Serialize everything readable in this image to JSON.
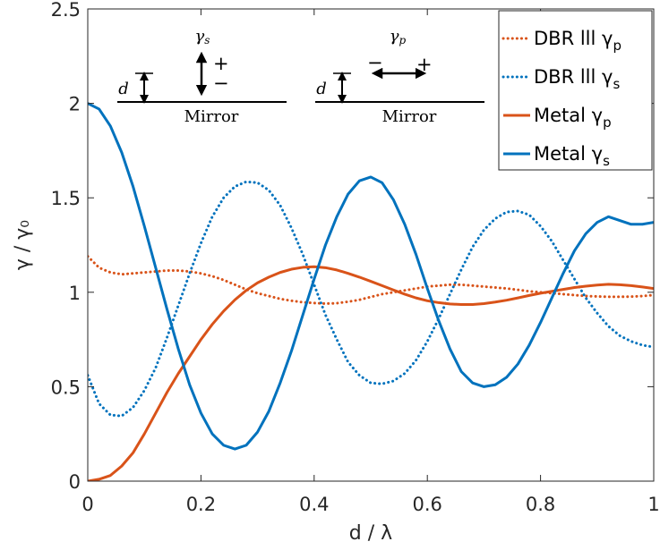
{
  "chart_data": {
    "type": "line",
    "xlabel": "d / λ",
    "ylabel": "γ / γ₀",
    "xlim": [
      0,
      1
    ],
    "ylim": [
      0,
      2.5
    ],
    "xticks": [
      0,
      0.2,
      0.4,
      0.6,
      0.8,
      1
    ],
    "yticks": [
      0,
      0.5,
      1,
      1.5,
      2,
      2.5
    ],
    "xtick_labels": [
      "0",
      "0.2",
      "0.4",
      "0.6",
      "0.8",
      "1"
    ],
    "ytick_labels": [
      "0",
      "0.5",
      "1",
      "1.5",
      "2",
      "2.5"
    ],
    "grid": false,
    "legend_position": "top-right",
    "series": [
      {
        "name": "DBR lll γp",
        "color": "#D95319",
        "style": "dotted",
        "x": [
          0,
          0.02,
          0.04,
          0.06,
          0.08,
          0.1,
          0.12,
          0.14,
          0.16,
          0.18,
          0.2,
          0.22,
          0.24,
          0.26,
          0.28,
          0.3,
          0.32,
          0.34,
          0.36,
          0.38,
          0.4,
          0.42,
          0.44,
          0.46,
          0.48,
          0.5,
          0.52,
          0.54,
          0.56,
          0.58,
          0.6,
          0.62,
          0.64,
          0.66,
          0.68,
          0.7,
          0.72,
          0.74,
          0.76,
          0.78,
          0.8,
          0.82,
          0.84,
          0.86,
          0.88,
          0.9,
          0.92,
          0.94,
          0.96,
          0.98,
          1
        ],
        "values": [
          1.19,
          1.13,
          1.105,
          1.095,
          1.1,
          1.105,
          1.11,
          1.115,
          1.115,
          1.11,
          1.1,
          1.085,
          1.065,
          1.04,
          1.015,
          0.995,
          0.98,
          0.965,
          0.955,
          0.947,
          0.943,
          0.94,
          0.942,
          0.95,
          0.96,
          0.975,
          0.99,
          1.0,
          1.01,
          1.02,
          1.03,
          1.035,
          1.04,
          1.04,
          1.035,
          1.03,
          1.025,
          1.02,
          1.013,
          1.005,
          1.0,
          0.995,
          0.99,
          0.985,
          0.98,
          0.978,
          0.976,
          0.976,
          0.977,
          0.98,
          0.985
        ]
      },
      {
        "name": "DBR lll γs",
        "color": "#0072BD",
        "style": "dotted",
        "x": [
          0,
          0.02,
          0.04,
          0.06,
          0.08,
          0.1,
          0.12,
          0.14,
          0.16,
          0.18,
          0.2,
          0.22,
          0.24,
          0.26,
          0.28,
          0.3,
          0.32,
          0.34,
          0.36,
          0.38,
          0.4,
          0.42,
          0.44,
          0.46,
          0.48,
          0.5,
          0.52,
          0.54,
          0.56,
          0.58,
          0.6,
          0.62,
          0.64,
          0.66,
          0.68,
          0.7,
          0.72,
          0.74,
          0.76,
          0.78,
          0.8,
          0.82,
          0.84,
          0.86,
          0.88,
          0.9,
          0.92,
          0.94,
          0.96,
          0.98,
          1
        ],
        "values": [
          0.56,
          0.41,
          0.35,
          0.345,
          0.39,
          0.48,
          0.6,
          0.76,
          0.93,
          1.1,
          1.26,
          1.4,
          1.5,
          1.56,
          1.585,
          1.58,
          1.54,
          1.46,
          1.34,
          1.2,
          1.04,
          0.88,
          0.75,
          0.63,
          0.56,
          0.52,
          0.515,
          0.53,
          0.57,
          0.64,
          0.74,
          0.86,
          0.99,
          1.12,
          1.24,
          1.33,
          1.39,
          1.425,
          1.43,
          1.41,
          1.35,
          1.27,
          1.17,
          1.07,
          0.97,
          0.89,
          0.82,
          0.77,
          0.74,
          0.72,
          0.71
        ]
      },
      {
        "name": "Metal γp",
        "color": "#D95319",
        "style": "solid",
        "x": [
          0,
          0.02,
          0.04,
          0.06,
          0.08,
          0.1,
          0.12,
          0.14,
          0.16,
          0.18,
          0.2,
          0.22,
          0.24,
          0.26,
          0.28,
          0.3,
          0.32,
          0.34,
          0.36,
          0.38,
          0.4,
          0.42,
          0.44,
          0.46,
          0.48,
          0.5,
          0.52,
          0.54,
          0.56,
          0.58,
          0.6,
          0.62,
          0.64,
          0.66,
          0.68,
          0.7,
          0.72,
          0.74,
          0.76,
          0.78,
          0.8,
          0.82,
          0.84,
          0.86,
          0.88,
          0.9,
          0.92,
          0.94,
          0.96,
          0.98,
          1
        ],
        "values": [
          0.0,
          0.01,
          0.03,
          0.08,
          0.15,
          0.25,
          0.36,
          0.47,
          0.57,
          0.66,
          0.75,
          0.83,
          0.9,
          0.96,
          1.01,
          1.05,
          1.08,
          1.105,
          1.122,
          1.132,
          1.135,
          1.13,
          1.118,
          1.1,
          1.08,
          1.058,
          1.035,
          1.012,
          0.99,
          0.97,
          0.955,
          0.945,
          0.938,
          0.935,
          0.935,
          0.94,
          0.948,
          0.958,
          0.97,
          0.983,
          0.995,
          1.005,
          1.015,
          1.025,
          1.032,
          1.038,
          1.042,
          1.04,
          1.035,
          1.028,
          1.02
        ]
      },
      {
        "name": "Metal γs",
        "color": "#0072BD",
        "style": "solid",
        "x": [
          0,
          0.02,
          0.04,
          0.06,
          0.08,
          0.1,
          0.12,
          0.14,
          0.16,
          0.18,
          0.2,
          0.22,
          0.24,
          0.26,
          0.28,
          0.3,
          0.32,
          0.34,
          0.36,
          0.38,
          0.4,
          0.42,
          0.44,
          0.46,
          0.48,
          0.5,
          0.52,
          0.54,
          0.56,
          0.58,
          0.6,
          0.62,
          0.64,
          0.66,
          0.68,
          0.7,
          0.72,
          0.74,
          0.76,
          0.78,
          0.8,
          0.82,
          0.84,
          0.86,
          0.88,
          0.9,
          0.92,
          0.94,
          0.96,
          0.98,
          1
        ],
        "values": [
          2.0,
          1.97,
          1.88,
          1.74,
          1.56,
          1.35,
          1.13,
          0.91,
          0.7,
          0.51,
          0.36,
          0.25,
          0.19,
          0.17,
          0.19,
          0.26,
          0.37,
          0.52,
          0.69,
          0.88,
          1.07,
          1.25,
          1.4,
          1.52,
          1.59,
          1.61,
          1.58,
          1.49,
          1.36,
          1.2,
          1.02,
          0.85,
          0.7,
          0.58,
          0.52,
          0.5,
          0.51,
          0.55,
          0.62,
          0.72,
          0.84,
          0.97,
          1.1,
          1.22,
          1.31,
          1.37,
          1.4,
          1.38,
          1.36,
          1.36,
          1.37
        ]
      }
    ],
    "legend_labels": [
      {
        "main": "DBR lll γ",
        "sub": "p"
      },
      {
        "main": "DBR lll γ",
        "sub": "s"
      },
      {
        "main": "Metal γ",
        "sub": "p"
      },
      {
        "main": "Metal γ",
        "sub": "s"
      }
    ],
    "inset": {
      "left_panel": {
        "title": "γ",
        "title_sub": "s",
        "distance_label": "d",
        "mirror_label": "Mirror",
        "plus_sign": "+",
        "minus_sign": "−"
      },
      "right_panel": {
        "title": "γ",
        "title_sub": "p",
        "distance_label": "d",
        "mirror_label": "Mirror",
        "plus_sign": "+",
        "minus_sign": "−"
      }
    }
  }
}
